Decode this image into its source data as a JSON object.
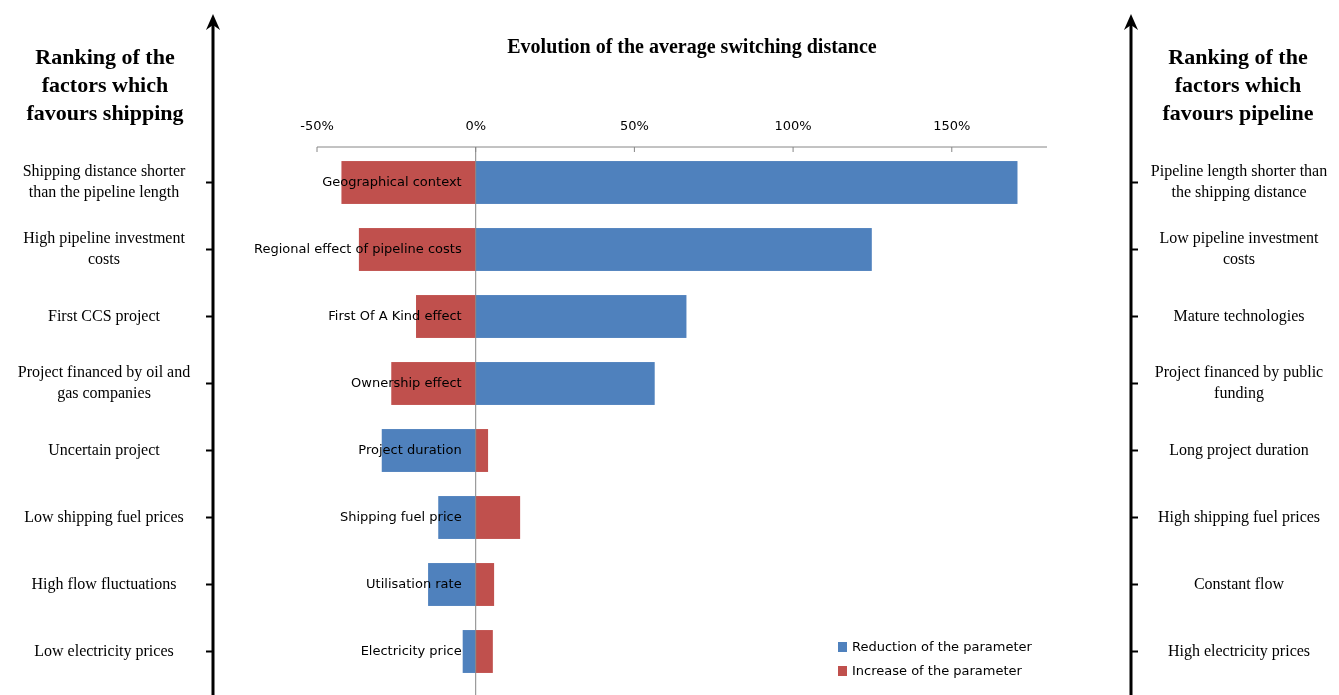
{
  "chart_data": {
    "type": "bar",
    "orientation": "horizontal",
    "stacked": true,
    "title": "Evolution of the average switching distance",
    "categories": [
      "Geographical context",
      "Regional effect of pipeline costs",
      "First Of A Kind effect",
      "Ownership effect",
      "Project duration",
      "Shipping fuel price",
      "Utilisation rate",
      "Electricity price"
    ],
    "series": [
      {
        "name": "Reduction of the parameter",
        "color": "#4f81bd",
        "values": [
          170.7,
          124.8,
          66.4,
          56.4,
          -29.6,
          -11.8,
          -15,
          -4.1
        ]
      },
      {
        "name": "Increase of the parameter",
        "color": "#c0504d",
        "values": [
          -42.3,
          -36.8,
          -18.8,
          -26.6,
          3.9,
          14,
          5.8,
          5.4
        ]
      }
    ],
    "xlim": [
      -50,
      180
    ],
    "xticks": [
      {
        "value": -50,
        "label": "-50%"
      },
      {
        "value": 0,
        "label": "0%"
      },
      {
        "value": 50,
        "label": "50%"
      },
      {
        "value": 100,
        "label": "100%"
      },
      {
        "value": 150,
        "label": "150%"
      }
    ],
    "legend": "bottom right",
    "grid": false,
    "annotations": [
      "Ranking of the factors which favours shipping",
      "Ranking of the factors which favours pipeline",
      "Shipping distance shorter than the pipeline length",
      "High pipeline investment costs",
      "First CCS project",
      "Project financed by oil and gas companies",
      "Uncertain project",
      "Low shipping fuel prices",
      "High flow fluctuations",
      "Low electricity prices",
      "Pipeline length shorter than the shipping distance",
      "Low pipeline investment costs",
      "Mature technologies",
      "Project financed by public funding",
      "Long project duration",
      "High shipping fuel prices",
      "Constant flow",
      "High electricity prices"
    ]
  }
}
